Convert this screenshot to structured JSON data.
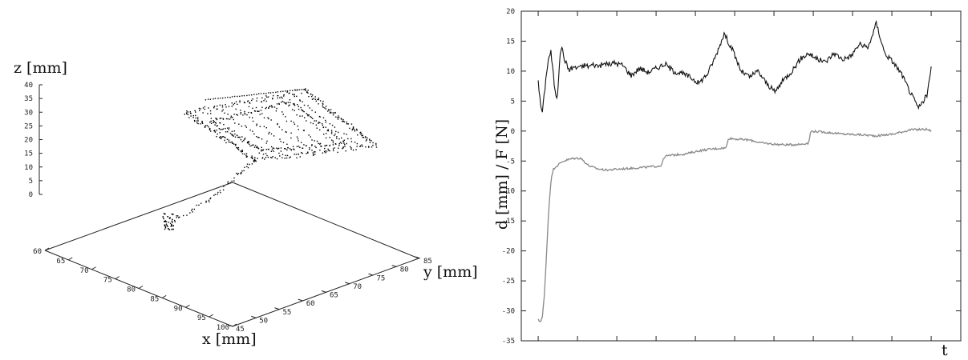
{
  "chart_data": [
    {
      "type": "scatter",
      "projection": "3d",
      "xlabel": "x [mm]",
      "ylabel": "y [mm]",
      "zlabel": "z [mm]",
      "xlim": [
        60,
        100
      ],
      "ylim": [
        45,
        85
      ],
      "zlim": [
        0,
        40
      ],
      "x_ticks": [
        "60",
        "65",
        "70",
        "75",
        "80",
        "85",
        "90",
        "95",
        "100"
      ],
      "y_ticks": [
        "45",
        "50",
        "55",
        "60",
        "65",
        "70",
        "75",
        "80",
        "85"
      ],
      "z_ticks": [
        "0",
        "5",
        "10",
        "15",
        "20",
        "25",
        "30",
        "35",
        "40"
      ],
      "trajectory": [
        {
          "x": 90,
          "y": 68,
          "z": 0
        },
        {
          "x": 88,
          "y": 70,
          "z": 1
        },
        {
          "x": 86,
          "y": 72,
          "z": 2
        },
        {
          "x": 84,
          "y": 74,
          "z": 4
        },
        {
          "x": 82,
          "y": 74,
          "z": 6
        },
        {
          "x": 80,
          "y": 73,
          "z": 9
        },
        {
          "x": 78,
          "y": 72,
          "z": 12
        },
        {
          "x": 76,
          "y": 72,
          "z": 14
        }
      ],
      "plane_corners": [
        {
          "x": 62,
          "y": 48,
          "z": 28
        },
        {
          "x": 60,
          "y": 70,
          "z": 33
        },
        {
          "x": 62,
          "y": 84,
          "z": 36
        },
        {
          "x": 80,
          "y": 84,
          "z": 22
        },
        {
          "x": 86,
          "y": 66,
          "z": 16
        },
        {
          "x": 70,
          "y": 48,
          "z": 22
        }
      ]
    },
    {
      "type": "line",
      "xlabel": "t",
      "ylabel": "d [mm] / F [N]",
      "ylim": [
        -35,
        20
      ],
      "x_tick_count": 20,
      "y_ticks": [
        "-35",
        "-30",
        "-25",
        "-20",
        "-15",
        "-10",
        "-5",
        "0",
        "5",
        "10",
        "15",
        "20"
      ],
      "series": [
        {
          "color": "#111111",
          "t": [
            0,
            0.05,
            0.1,
            0.15,
            0.2,
            0.25,
            0.3,
            0.35,
            0.4,
            0.45,
            0.5,
            0.55,
            0.6,
            0.65,
            0.7,
            0.75,
            0.8,
            0.85,
            0.9,
            0.95,
            1.0,
            1.1,
            1.2,
            1.3,
            1.4,
            1.5,
            1.6,
            1.7,
            1.8,
            1.9,
            2.0,
            2.2,
            2.4,
            2.6,
            2.8,
            3.0,
            3.1,
            3.2,
            3.4,
            3.6,
            3.8,
            4.0,
            4.2,
            4.4,
            4.6,
            4.8,
            5.0,
            5.2,
            5.4,
            5.6,
            5.8,
            6.0,
            6.2,
            6.4,
            6.6,
            6.8,
            7.0,
            7.2,
            7.4,
            7.6,
            7.8,
            8.0,
            8.2,
            8.4,
            8.6,
            8.8,
            9.0,
            9.2,
            9.3
          ],
          "values": [
            8.7,
            4.5,
            3.2,
            6.5,
            10,
            12.3,
            13.2,
            10,
            6.5,
            5.5,
            11,
            14.5,
            12.5,
            11.5,
            10.6,
            10.2,
            10.5,
            10.8,
            10.4,
            10.9,
            10.6,
            11.0,
            10.8,
            11.1,
            10.9,
            11.0,
            11.3,
            11.1,
            11.4,
            11.2,
            11.0,
            9.3,
            10.5,
            9.8,
            10.5,
            11.2,
            10.6,
            10.0,
            9.6,
            9.0,
            8.0,
            9.5,
            12.5,
            16.3,
            13.5,
            10.0,
            9.0,
            10.0,
            8.0,
            6.5,
            8.5,
            10.0,
            12.0,
            13.0,
            12.0,
            11.5,
            13.0,
            12.0,
            12.5,
            14.5,
            13.8,
            18.0,
            13.0,
            11.5,
            9.5,
            6.5,
            3.8,
            6.0,
            10.5
          ]
        },
        {
          "color": "#888888",
          "t": [
            0,
            0.05,
            0.1,
            0.15,
            0.2,
            0.25,
            0.3,
            0.35,
            0.4,
            0.45,
            0.5,
            0.55,
            0.6,
            0.7,
            0.8,
            1.0,
            1.2,
            1.4,
            1.6,
            1.8,
            2.0,
            2.2,
            2.4,
            2.6,
            2.9,
            3.0,
            3.2,
            3.5,
            3.8,
            4.1,
            4.45,
            4.5,
            4.8,
            5.0,
            5.3,
            5.6,
            5.9,
            6.2,
            6.4,
            6.45,
            6.8,
            7.2,
            7.6,
            8.0,
            8.4,
            8.8,
            9.2,
            9.3
          ],
          "values": [
            -31.5,
            -31.8,
            -31,
            -27,
            -20,
            -13,
            -8.5,
            -6.5,
            -6.0,
            -5.8,
            -5.5,
            -5.2,
            -5.0,
            -4.8,
            -4.6,
            -4.5,
            -5.8,
            -6.3,
            -6.5,
            -6.4,
            -6.3,
            -6.2,
            -6.1,
            -6.0,
            -5.8,
            -4.2,
            -4.0,
            -3.8,
            -3.3,
            -3.0,
            -2.8,
            -1.2,
            -1.4,
            -1.5,
            -2.0,
            -2.2,
            -2.3,
            -2.2,
            -2.0,
            0.0,
            -0.2,
            -0.5,
            -0.6,
            -0.8,
            -0.5,
            0.2,
            0.3,
            0.0
          ]
        }
      ]
    }
  ]
}
